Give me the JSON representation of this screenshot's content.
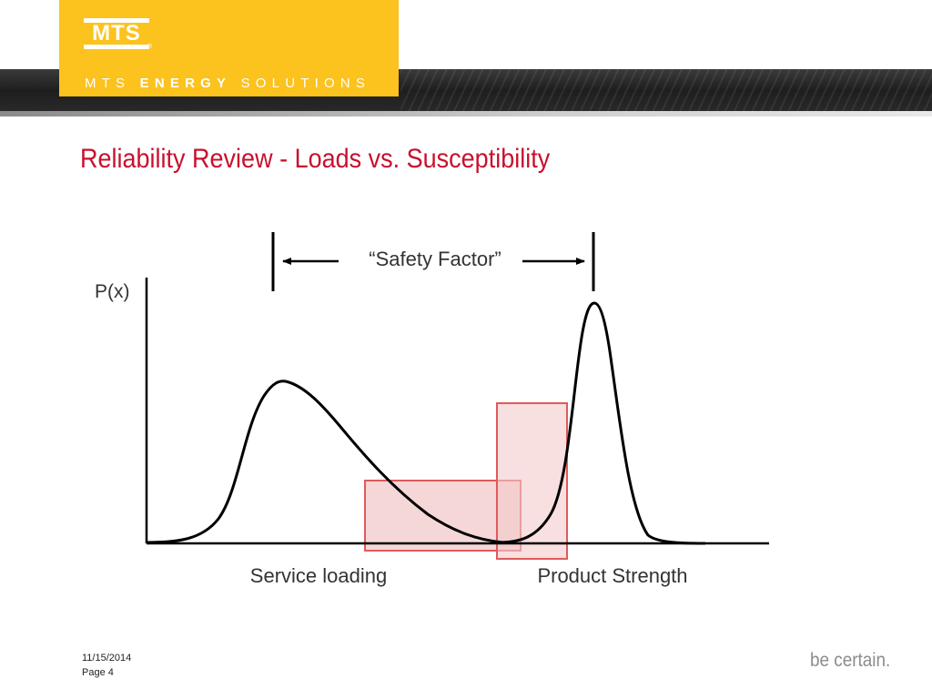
{
  "header": {
    "logo_text": "MTS",
    "logo_reg": "®",
    "banner_prefix": "MTS",
    "banner_strong": "ENERGY",
    "banner_suffix": "SOLUTIONS"
  },
  "slide": {
    "title": "Reliability Review - Loads vs. Susceptibility"
  },
  "diagram": {
    "y_axis_label": "P(x)",
    "safety_factor_label": "“Safety Factor”",
    "left_curve_label": "Service loading",
    "right_curve_label": "Product Strength",
    "highlight_color": "#e05a5a"
  },
  "footer": {
    "date": "11/15/2014",
    "page": "Page 4",
    "tagline": "be certain."
  }
}
